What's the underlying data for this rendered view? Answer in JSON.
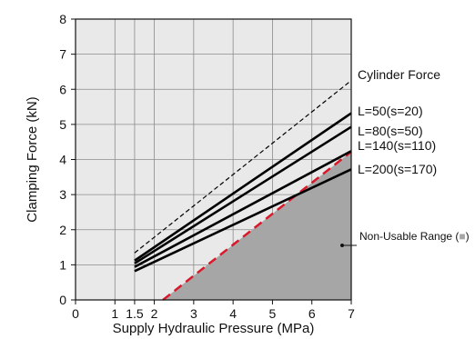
{
  "chart_data": {
    "type": "line",
    "xlabel": "Supply Hydraulic Pressure (MPa)",
    "ylabel": "Clamping Force (kN)",
    "xlim": [
      0,
      7
    ],
    "ylim": [
      0,
      8
    ],
    "x_ticks": [
      "0",
      "1",
      "1.5",
      "2",
      "3",
      "4",
      "5",
      "6",
      "7"
    ],
    "y_ticks": [
      "0",
      "1",
      "2",
      "3",
      "4",
      "5",
      "6",
      "7",
      "8"
    ],
    "grid": true,
    "background_color": "#e9e9e9",
    "series": [
      {
        "name": "Cylinder Force",
        "style": "dashed",
        "color": "#000000",
        "x": [
          1.5,
          7
        ],
        "y": [
          1.34,
          6.25
        ]
      },
      {
        "name": "L=50(s=20)",
        "style": "solid",
        "color": "#000000",
        "x": [
          1.5,
          7
        ],
        "y": [
          1.12,
          5.32
        ]
      },
      {
        "name": "L=80(s=50)",
        "style": "solid",
        "color": "#000000",
        "x": [
          1.5,
          7
        ],
        "y": [
          1.04,
          4.93
        ]
      },
      {
        "name": "L=140(s=110)",
        "style": "solid",
        "color": "#000000",
        "x": [
          1.5,
          7
        ],
        "y": [
          0.94,
          4.24
        ]
      },
      {
        "name": "L=200(s=170)",
        "style": "solid",
        "color": "#000000",
        "x": [
          1.5,
          7
        ],
        "y": [
          0.82,
          3.72
        ]
      }
    ],
    "non_usable_range": {
      "label": "Non-Usable Range (",
      "label_suffix": ")",
      "fill_color": "#a6a6a6",
      "boundary_color": "#d9192a",
      "boundary_style": "dashed",
      "boundary": {
        "x": [
          2.22,
          7
        ],
        "y": [
          0,
          4.22
        ]
      }
    }
  }
}
